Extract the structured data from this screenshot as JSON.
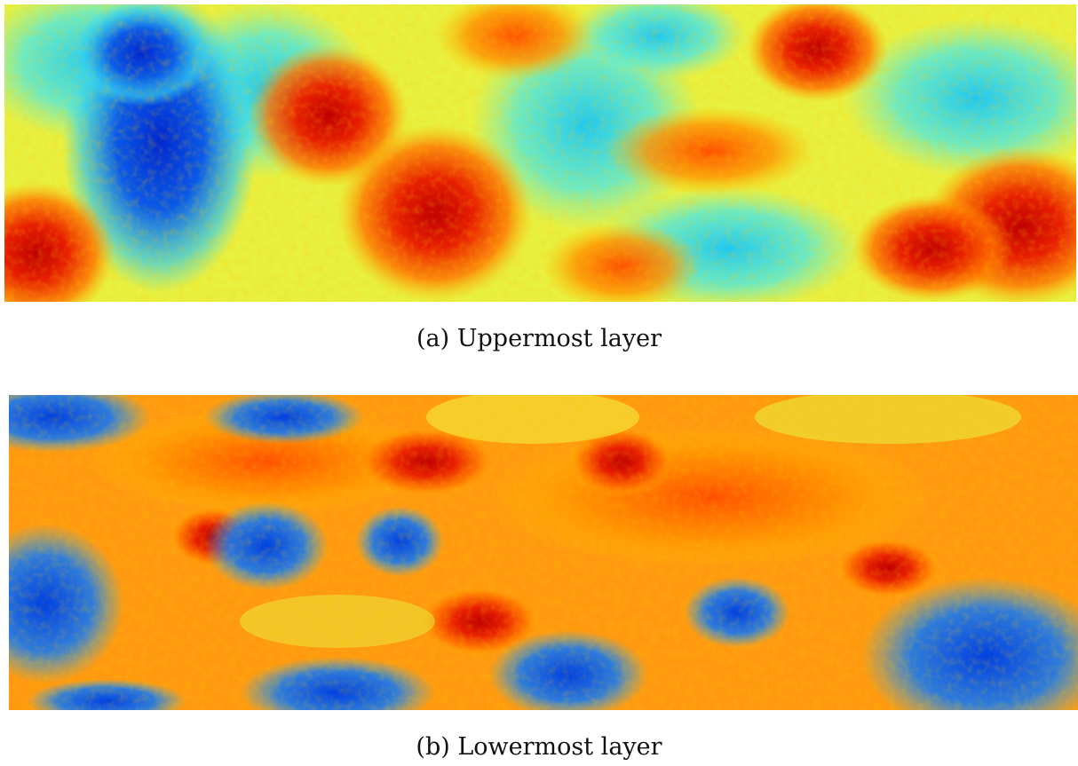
{
  "figure": {
    "panels": [
      {
        "caption": "(a) Uppermost layer"
      },
      {
        "caption": "(b) Lowermost layer"
      }
    ]
  }
}
